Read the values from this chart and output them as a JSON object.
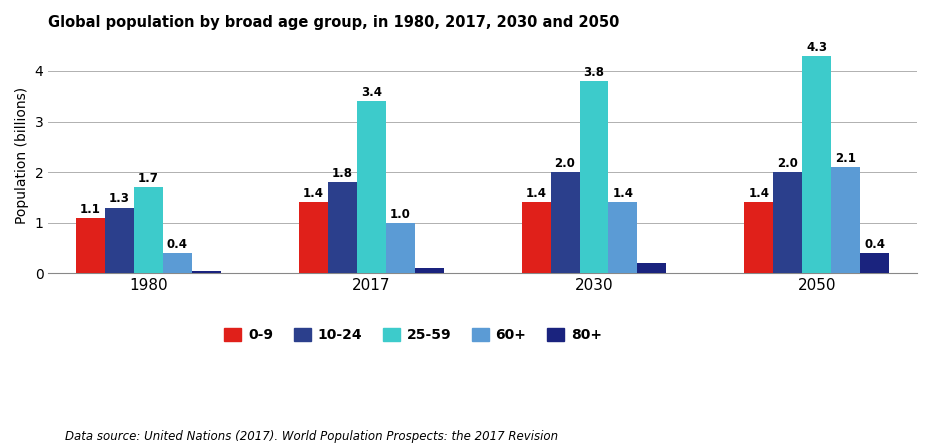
{
  "title": "Global population by broad age group, in 1980, 2017, 2030 and 2050",
  "ylabel": "Population (billions)",
  "source_text": "Data source: United Nations (2017). World Population Prospects: the 2017 Revision",
  "years": [
    "1980",
    "2017",
    "2030",
    "2050"
  ],
  "age_groups": [
    "0-9",
    "10-24",
    "25-59",
    "60+",
    "80+"
  ],
  "colors": [
    "#e0201a",
    "#2b3f8c",
    "#3dcbcb",
    "#5b9bd5",
    "#1a237e"
  ],
  "data": {
    "0-9": [
      1.1,
      1.4,
      1.4,
      1.4
    ],
    "10-24": [
      1.3,
      1.8,
      2.0,
      2.0
    ],
    "25-59": [
      1.7,
      3.4,
      3.8,
      4.3
    ],
    "60+": [
      0.4,
      1.0,
      1.4,
      2.1
    ],
    "80+": [
      0.05,
      0.1,
      0.2,
      0.4
    ]
  },
  "bar_labels": {
    "0-9": [
      "1.1",
      "1.4",
      "1.4",
      "1.4"
    ],
    "10-24": [
      "1.3",
      "1.8",
      "2.0",
      "2.0"
    ],
    "25-59": [
      "1.7",
      "3.4",
      "3.8",
      "4.3"
    ],
    "60+": [
      "0.4",
      "1.0",
      "1.4",
      "2.1"
    ],
    "80+": [
      "",
      "",
      "",
      "0.4"
    ]
  },
  "ylim": [
    0,
    4.65
  ],
  "yticks": [
    0,
    1,
    2,
    3,
    4
  ],
  "bar_width": 0.13,
  "group_centers": [
    0,
    1.0,
    2.0,
    3.0
  ],
  "figsize": [
    9.32,
    4.44
  ],
  "dpi": 100,
  "background_color": "#ffffff",
  "grid_color": "#b0b0b0"
}
